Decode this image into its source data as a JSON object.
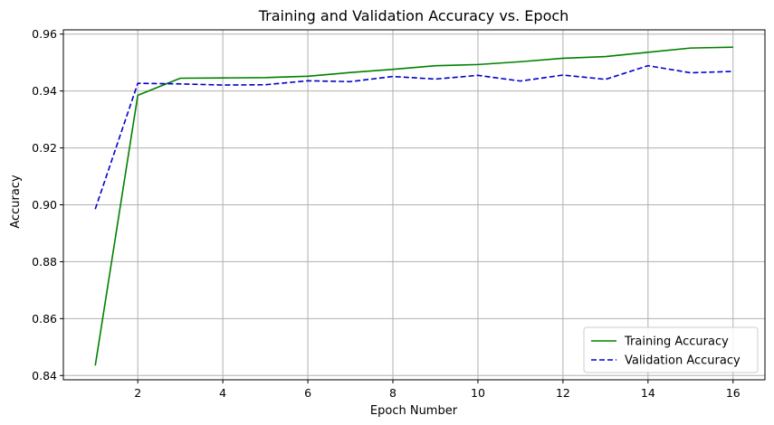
{
  "chart_data": {
    "type": "line",
    "title": "Training and Validation Accuracy vs. Epoch",
    "xlabel": "Epoch Number",
    "ylabel": "Accuracy",
    "xlim": [
      0.25,
      16.75
    ],
    "ylim": [
      0.8385,
      0.9615
    ],
    "xticks": [
      2,
      4,
      6,
      8,
      10,
      12,
      14,
      16
    ],
    "yticks": [
      0.84,
      0.86,
      0.88,
      0.9,
      0.92,
      0.94,
      0.96
    ],
    "ytick_labels": [
      "0.84",
      "0.86",
      "0.88",
      "0.90",
      "0.92",
      "0.94",
      "0.96"
    ],
    "grid": true,
    "legend_position": "bottom-right",
    "x": [
      1,
      2,
      3,
      4,
      5,
      6,
      7,
      8,
      9,
      10,
      11,
      12,
      13,
      14,
      15,
      16
    ],
    "series": [
      {
        "name": "Training Accuracy",
        "color": "#008000",
        "dash": "solid",
        "values": [
          0.8435,
          0.9385,
          0.9445,
          0.9446,
          0.9447,
          0.9452,
          0.9465,
          0.9476,
          0.9489,
          0.9493,
          0.9503,
          0.9515,
          0.9521,
          0.9536,
          0.9551,
          0.9554
        ]
      },
      {
        "name": "Validation Accuracy",
        "color": "#0000cc",
        "dash": "dashed",
        "values": [
          0.8985,
          0.9427,
          0.9425,
          0.9421,
          0.9422,
          0.9436,
          0.9433,
          0.9451,
          0.9442,
          0.9455,
          0.9435,
          0.9456,
          0.9441,
          0.9489,
          0.9464,
          0.9469
        ]
      }
    ]
  }
}
